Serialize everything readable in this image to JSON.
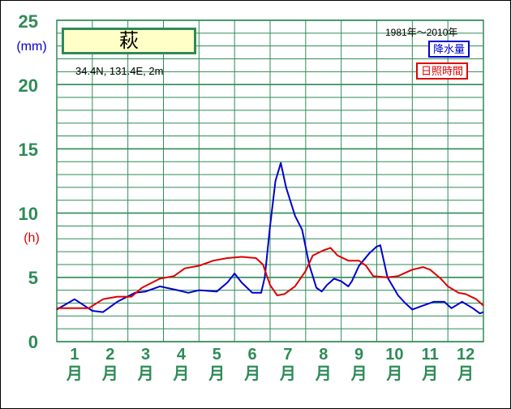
{
  "station": {
    "name": "萩",
    "coords": "34.4N,  131.4E,  2m",
    "period": "1981年〜2010年"
  },
  "legend": {
    "precip": "降水量",
    "sunshine": "日照時間"
  },
  "colors": {
    "grid": "#2e8b57",
    "precip": "#0000cc",
    "sunshine": "#dd0000",
    "station_bg": "#ffffc8"
  },
  "axis": {
    "y_ticks": [
      "25",
      "20",
      "15",
      "10",
      "5",
      "0"
    ],
    "unit_precip": "(mm)",
    "unit_sunshine": "(h)",
    "months": [
      {
        "num": "1",
        "label": "月"
      },
      {
        "num": "2",
        "label": "月"
      },
      {
        "num": "3",
        "label": "月"
      },
      {
        "num": "4",
        "label": "月"
      },
      {
        "num": "5",
        "label": "月"
      },
      {
        "num": "6",
        "label": "月"
      },
      {
        "num": "7",
        "label": "月"
      },
      {
        "num": "8",
        "label": "月"
      },
      {
        "num": "9",
        "label": "月"
      },
      {
        "num": "10",
        "label": "月"
      },
      {
        "num": "11",
        "label": "月"
      },
      {
        "num": "12",
        "label": "月"
      }
    ]
  },
  "chart_data": {
    "type": "line",
    "x_range": [
      0,
      12
    ],
    "ylim": [
      0,
      25
    ],
    "series": [
      {
        "name": "降水量",
        "points": [
          [
            0,
            2.5
          ],
          [
            0.5,
            3.3
          ],
          [
            1.0,
            2.4
          ],
          [
            1.3,
            2.3
          ],
          [
            1.7,
            3.1
          ],
          [
            2.2,
            3.8
          ],
          [
            2.5,
            3.9
          ],
          [
            2.9,
            4.3
          ],
          [
            3.4,
            4.0
          ],
          [
            3.7,
            3.8
          ],
          [
            4.0,
            4.0
          ],
          [
            4.5,
            3.9
          ],
          [
            4.8,
            4.6
          ],
          [
            5.0,
            5.3
          ],
          [
            5.2,
            4.6
          ],
          [
            5.5,
            3.8
          ],
          [
            5.75,
            3.8
          ],
          [
            5.85,
            5.0
          ],
          [
            6.0,
            9.0
          ],
          [
            6.15,
            12.5
          ],
          [
            6.3,
            13.9
          ],
          [
            6.45,
            12.0
          ],
          [
            6.7,
            9.8
          ],
          [
            6.9,
            8.7
          ],
          [
            7.1,
            6.0
          ],
          [
            7.3,
            4.2
          ],
          [
            7.45,
            3.9
          ],
          [
            7.6,
            4.4
          ],
          [
            7.8,
            4.9
          ],
          [
            8.0,
            4.7
          ],
          [
            8.2,
            4.3
          ],
          [
            8.3,
            4.7
          ],
          [
            8.5,
            5.9
          ],
          [
            8.8,
            6.9
          ],
          [
            9.0,
            7.4
          ],
          [
            9.1,
            7.5
          ],
          [
            9.3,
            5.0
          ],
          [
            9.6,
            3.6
          ],
          [
            9.8,
            3.0
          ],
          [
            10.0,
            2.5
          ],
          [
            10.3,
            2.8
          ],
          [
            10.6,
            3.1
          ],
          [
            10.9,
            3.1
          ],
          [
            11.1,
            2.6
          ],
          [
            11.4,
            3.1
          ],
          [
            11.7,
            2.6
          ],
          [
            11.9,
            2.2
          ],
          [
            12.0,
            2.3
          ]
        ]
      },
      {
        "name": "日照時間",
        "points": [
          [
            0,
            2.6
          ],
          [
            0.5,
            2.6
          ],
          [
            0.9,
            2.6
          ],
          [
            1.3,
            3.3
          ],
          [
            1.7,
            3.5
          ],
          [
            2.1,
            3.5
          ],
          [
            2.4,
            4.2
          ],
          [
            2.9,
            4.9
          ],
          [
            3.3,
            5.1
          ],
          [
            3.6,
            5.7
          ],
          [
            4.0,
            5.9
          ],
          [
            4.4,
            6.3
          ],
          [
            4.8,
            6.5
          ],
          [
            5.2,
            6.6
          ],
          [
            5.6,
            6.5
          ],
          [
            5.8,
            6.0
          ],
          [
            6.0,
            4.4
          ],
          [
            6.2,
            3.6
          ],
          [
            6.4,
            3.7
          ],
          [
            6.7,
            4.3
          ],
          [
            7.0,
            5.5
          ],
          [
            7.2,
            6.7
          ],
          [
            7.5,
            7.1
          ],
          [
            7.7,
            7.3
          ],
          [
            7.9,
            6.7
          ],
          [
            8.2,
            6.3
          ],
          [
            8.5,
            6.3
          ],
          [
            8.7,
            5.9
          ],
          [
            8.9,
            5.1
          ],
          [
            9.3,
            5.0
          ],
          [
            9.6,
            5.1
          ],
          [
            10.0,
            5.6
          ],
          [
            10.3,
            5.8
          ],
          [
            10.5,
            5.6
          ],
          [
            10.8,
            4.9
          ],
          [
            11.0,
            4.3
          ],
          [
            11.3,
            3.8
          ],
          [
            11.5,
            3.7
          ],
          [
            11.8,
            3.3
          ],
          [
            12.0,
            2.8
          ]
        ]
      }
    ]
  }
}
